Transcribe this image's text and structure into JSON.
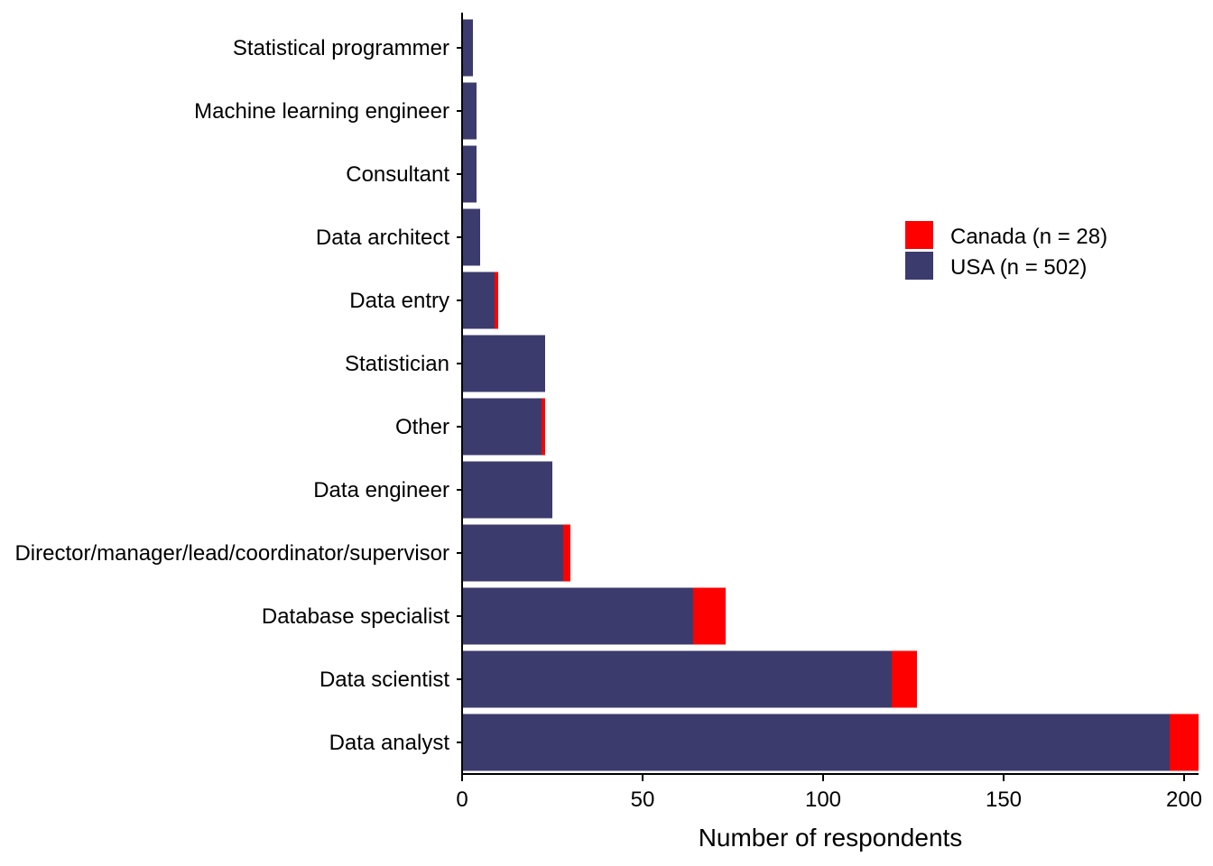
{
  "chart_data": {
    "type": "bar",
    "orientation": "horizontal",
    "stacked": true,
    "categories": [
      "Data analyst",
      "Data scientist",
      "Database specialist",
      "Director/manager/lead/coordinator/supervisor",
      "Data engineer",
      "Other",
      "Statistician",
      "Data entry",
      "Data architect",
      "Consultant",
      "Machine learning engineer",
      "Statistical programmer"
    ],
    "series": [
      {
        "name": "USA (n = 502)",
        "color": "#3c3b6e",
        "values": [
          196,
          119,
          64,
          28,
          25,
          22,
          23,
          9,
          5,
          4,
          4,
          3
        ]
      },
      {
        "name": "Canada (n = 28)",
        "color": "#ff0000",
        "values": [
          8,
          7,
          9,
          2,
          0,
          1,
          0,
          1,
          0,
          0,
          0,
          0
        ]
      }
    ],
    "legend_order": [
      "Canada (n = 28)",
      "USA (n = 502)"
    ],
    "xlabel": "Number of respondents",
    "ylabel": "",
    "xlim": [
      0,
      204
    ],
    "xticks": [
      0,
      50,
      100,
      150,
      200
    ],
    "grid": false,
    "legend_position": "upper-right"
  }
}
